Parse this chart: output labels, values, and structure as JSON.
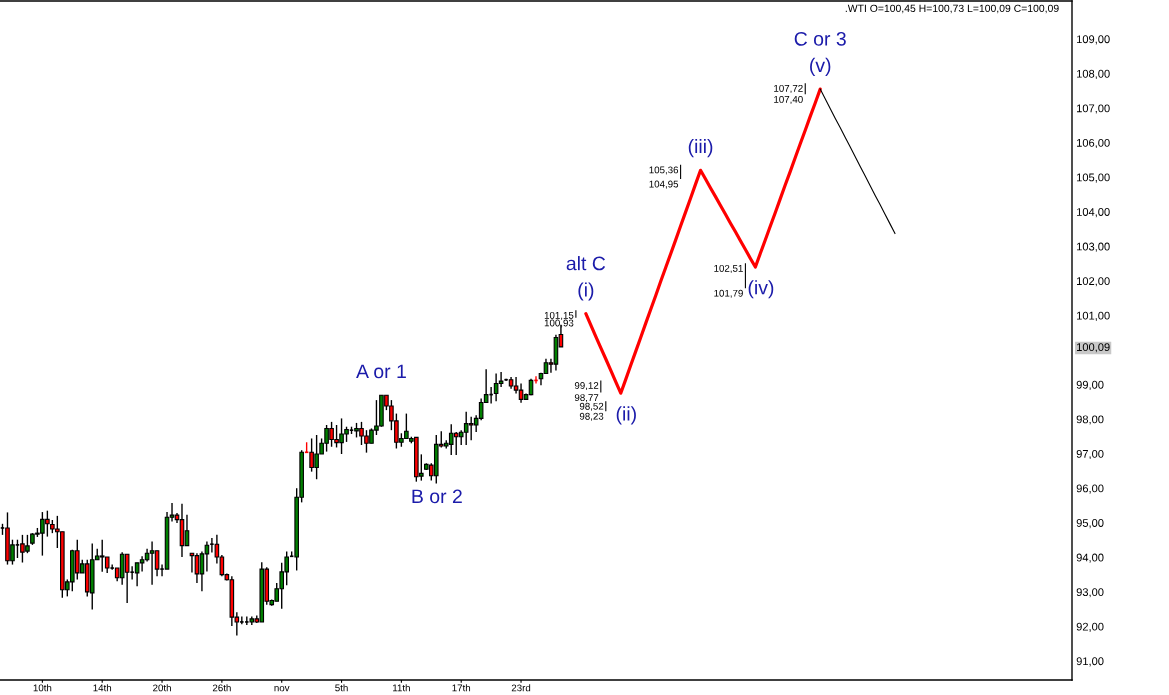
{
  "chart_data": {
    "type": "candlestick",
    "title": ".WTI O=100,45 H=100,73 L=100,09 C=100,09",
    "categories": [
      null,
      null,
      null,
      null,
      null,
      null,
      null,
      null,
      "10th",
      null,
      null,
      null,
      null,
      null,
      null,
      null,
      null,
      null,
      null,
      null,
      "14th",
      null,
      null,
      null,
      null,
      null,
      null,
      null,
      null,
      null,
      null,
      null,
      "20th",
      null,
      null,
      null,
      null,
      null,
      null,
      null,
      null,
      null,
      null,
      null,
      "26th",
      null,
      null,
      null,
      null,
      null,
      null,
      null,
      null,
      null,
      null,
      null,
      "nov",
      null,
      null,
      null,
      null,
      null,
      null,
      null,
      null,
      null,
      null,
      null,
      "5th",
      null,
      null,
      null,
      null,
      null,
      null,
      null,
      null,
      null,
      null,
      null,
      "11th",
      null,
      null,
      null,
      null,
      null,
      null,
      null,
      null,
      null,
      null,
      null,
      "17th",
      null,
      null,
      null,
      null,
      null,
      null,
      null,
      null,
      null,
      null,
      null,
      "23rd",
      null,
      null,
      null,
      null,
      null,
      null,
      null,
      null,
      null,
      null,
      null,
      null,
      null,
      null,
      null,
      null,
      null,
      null,
      null,
      null,
      null,
      null,
      null,
      null,
      null,
      null,
      null,
      null,
      null,
      null,
      null,
      null,
      null,
      null,
      null,
      null,
      null,
      null,
      null,
      null,
      null,
      null,
      null,
      null,
      null,
      null,
      null,
      null,
      null,
      null,
      null,
      null,
      null,
      null,
      null,
      null,
      null,
      null,
      null,
      null,
      null,
      null,
      null,
      null,
      null,
      null,
      null,
      null,
      null,
      null,
      null,
      null,
      null,
      null,
      null,
      null,
      null,
      null,
      null,
      null,
      null,
      null,
      null,
      null,
      null,
      null,
      null,
      null,
      null,
      null,
      null,
      null,
      null,
      null,
      null,
      null,
      null,
      null,
      null,
      null,
      null,
      null,
      null,
      null,
      null,
      null,
      null,
      null,
      null,
      null
    ],
    "ohlc": [
      [
        94.85,
        94.97,
        94.65,
        94.85
      ],
      [
        94.85,
        95.3,
        93.79,
        93.9
      ],
      [
        93.9,
        94.51,
        93.79,
        94.36
      ],
      [
        94.36,
        94.51,
        93.98,
        94.36
      ],
      [
        94.39,
        94.65,
        93.85,
        94.15
      ],
      [
        94.18,
        94.65,
        94.12,
        94.33
      ],
      [
        94.41,
        94.7,
        94.36,
        94.67
      ],
      [
        94.67,
        94.85,
        94.59,
        94.7
      ],
      [
        94.7,
        95.31,
        94.05,
        95.1
      ],
      [
        95.1,
        95.35,
        94.6,
        94.97
      ],
      [
        94.95,
        95.08,
        94.7,
        94.82
      ],
      [
        94.82,
        95.2,
        94.27,
        94.74
      ],
      [
        94.74,
        94.74,
        92.83,
        93.06
      ],
      [
        93.06,
        93.36,
        92.87,
        93.29
      ],
      [
        93.29,
        94.22,
        93.02,
        94.19
      ],
      [
        94.19,
        94.51,
        93.36,
        93.55
      ],
      [
        93.55,
        93.93,
        93.55,
        93.81
      ],
      [
        93.81,
        93.93,
        92.87,
        93.0
      ],
      [
        92.97,
        94.4,
        92.49,
        93.93
      ],
      [
        93.93,
        94.25,
        93.93,
        94.04
      ],
      [
        94.01,
        94.51,
        93.58,
        94.04
      ],
      [
        94.01,
        94.01,
        93.55,
        93.69
      ],
      [
        93.69,
        93.79,
        93.64,
        93.69
      ],
      [
        93.69,
        93.69,
        93.31,
        93.41
      ],
      [
        93.41,
        94.15,
        93.21,
        94.09
      ],
      [
        94.09,
        94.09,
        92.68,
        93.57
      ],
      [
        93.57,
        93.74,
        93.36,
        93.57
      ],
      [
        93.55,
        93.84,
        93.16,
        93.84
      ],
      [
        93.84,
        94.03,
        93.59,
        93.93
      ],
      [
        93.93,
        94.25,
        93.88,
        94.12
      ],
      [
        94.12,
        94.46,
        93.21,
        94.19
      ],
      [
        94.19,
        94.19,
        93.45,
        93.66
      ],
      [
        93.66,
        93.79,
        93.45,
        93.66
      ],
      [
        93.66,
        95.31,
        93.66,
        95.16
      ],
      [
        95.16,
        95.57,
        95.04,
        95.22
      ],
      [
        95.22,
        95.28,
        94.99,
        95.09
      ],
      [
        95.09,
        95.55,
        94.01,
        94.34
      ],
      [
        94.34,
        95.23,
        94.34,
        94.77
      ],
      [
        94.12,
        94.12,
        93.56,
        94.05
      ],
      [
        94.05,
        94.12,
        93.26,
        93.52
      ],
      [
        93.52,
        94.17,
        93.02,
        94.1
      ],
      [
        94.1,
        94.46,
        93.59,
        94.35
      ],
      [
        94.38,
        94.56,
        94.14,
        94.38
      ],
      [
        94.38,
        94.65,
        93.82,
        94.01
      ],
      [
        94.01,
        94.07,
        93.45,
        93.5
      ],
      [
        93.5,
        93.53,
        93.33,
        93.35
      ],
      [
        93.35,
        93.45,
        92.01,
        92.27
      ],
      [
        92.27,
        92.41,
        91.74,
        92.13
      ],
      [
        92.13,
        92.29,
        92.06,
        92.13
      ],
      [
        92.13,
        92.29,
        92.04,
        92.13
      ],
      [
        92.13,
        92.29,
        92.04,
        92.22
      ],
      [
        92.22,
        92.32,
        92.1,
        92.13
      ],
      [
        92.13,
        93.86,
        92.13,
        93.66
      ],
      [
        93.66,
        93.71,
        92.63,
        92.73
      ],
      [
        92.63,
        92.78,
        92.6,
        92.75
      ],
      [
        92.73,
        93.26,
        92.73,
        93.09
      ],
      [
        93.09,
        93.84,
        92.51,
        93.58
      ],
      [
        93.58,
        94.17,
        93.19,
        94.01
      ],
      [
        94.03,
        94.17,
        94.01,
        94.03
      ],
      [
        94.01,
        96.0,
        93.62,
        95.74
      ],
      [
        95.74,
        97.1,
        95.59,
        97.04
      ],
      [
        97.04,
        97.33,
        97.04,
        97.04
      ],
      [
        97.04,
        97.44,
        96.48,
        96.6
      ],
      [
        96.6,
        97.54,
        96.26,
        96.99
      ],
      [
        96.99,
        97.44,
        96.99,
        97.3
      ],
      [
        97.3,
        97.83,
        97.06,
        97.73
      ],
      [
        97.73,
        97.92,
        97.2,
        97.41
      ],
      [
        97.41,
        97.83,
        97.18,
        97.32
      ],
      [
        97.32,
        98.02,
        96.99,
        97.57
      ],
      [
        97.57,
        97.78,
        97.34,
        97.7
      ],
      [
        97.68,
        97.78,
        97.57,
        97.68
      ],
      [
        97.66,
        97.89,
        97.47,
        97.73
      ],
      [
        97.73,
        97.92,
        97.25,
        97.51
      ],
      [
        97.51,
        97.68,
        97.03,
        97.3
      ],
      [
        97.3,
        97.73,
        97.3,
        97.68
      ],
      [
        97.68,
        98.55,
        97.54,
        97.8
      ],
      [
        97.8,
        98.69,
        97.78,
        98.69
      ],
      [
        98.69,
        98.69,
        98.26,
        98.38
      ],
      [
        98.38,
        98.55,
        97.68,
        97.95
      ],
      [
        97.95,
        98.16,
        97.15,
        97.33
      ],
      [
        97.33,
        97.59,
        97.2,
        97.44
      ],
      [
        97.44,
        98.16,
        97.44,
        97.65
      ],
      [
        97.36,
        97.49,
        97.3,
        97.44
      ],
      [
        97.47,
        97.47,
        96.19,
        96.33
      ],
      [
        96.35,
        96.98,
        96.22,
        96.43
      ],
      [
        96.55,
        96.72,
        96.53,
        96.69
      ],
      [
        96.67,
        96.72,
        96.22,
        96.36
      ],
      [
        96.36,
        97.54,
        96.14,
        97.27
      ],
      [
        97.27,
        97.65,
        97.18,
        97.22
      ],
      [
        97.22,
        97.39,
        97.15,
        97.3
      ],
      [
        97.27,
        97.85,
        96.96,
        97.59
      ],
      [
        97.59,
        97.63,
        96.96,
        97.49
      ],
      [
        97.49,
        97.68,
        97.25,
        97.62
      ],
      [
        97.62,
        98.21,
        97.25,
        97.87
      ],
      [
        97.87,
        98.07,
        97.39,
        97.83
      ],
      [
        97.83,
        98.11,
        97.63,
        98.02
      ],
      [
        98.02,
        98.6,
        97.97,
        98.48
      ],
      [
        98.48,
        99.44,
        98.48,
        98.71
      ],
      [
        98.71,
        98.93,
        98.45,
        98.71
      ],
      [
        98.74,
        99.32,
        98.52,
        99.03
      ],
      [
        99.03,
        99.36,
        98.93,
        99.1
      ],
      [
        99.14,
        99.17,
        99.1,
        99.14
      ],
      [
        99.14,
        99.22,
        98.88,
        98.96
      ],
      [
        98.96,
        99.22,
        98.74,
        98.84
      ],
      [
        98.84,
        99.03,
        98.47,
        98.57
      ],
      [
        98.57,
        98.74,
        98.57,
        98.71
      ],
      [
        98.71,
        99.17,
        98.69,
        99.12
      ],
      [
        99.12,
        99.24,
        99.03,
        99.12
      ],
      [
        99.17,
        99.34,
        98.98,
        99.32
      ],
      [
        99.32,
        99.75,
        99.32,
        99.63
      ],
      [
        99.63,
        99.75,
        99.34,
        99.59
      ],
      [
        99.59,
        100.44,
        99.41,
        100.36
      ],
      [
        100.45,
        100.73,
        100.09,
        100.09
      ],
      null,
      null,
      null,
      null,
      null,
      null,
      null,
      null,
      null,
      null,
      null,
      null,
      null,
      null,
      null,
      null,
      null,
      null,
      null,
      null,
      null,
      null,
      null,
      null,
      null,
      null,
      null,
      null,
      null,
      null,
      null,
      null,
      null,
      null,
      null,
      null,
      null,
      null,
      null,
      null,
      null,
      null,
      null,
      null,
      null,
      null,
      null,
      null,
      null,
      null,
      null,
      null,
      null,
      null,
      null,
      null,
      null,
      null,
      null,
      null,
      null,
      null,
      null,
      null,
      null,
      null,
      null,
      null,
      null,
      null,
      null,
      null,
      null,
      null,
      null,
      null,
      null,
      null,
      null,
      null,
      null,
      null,
      null,
      null,
      null,
      null,
      null,
      null,
      null,
      null,
      null,
      null,
      null,
      null,
      null,
      null,
      null,
      null,
      null,
      null,
      null,
      null
    ],
    "colors": [
      "#000000",
      "#ff0000",
      "#008000",
      "#000000",
      "#ff0000",
      "#008000",
      "#008000",
      "#008000",
      "#008000",
      "#ff0000",
      "#ff0000",
      "#ff0000",
      "#ff0000",
      "#008000",
      "#008000",
      "#ff0000",
      "#008000",
      "#ff0000",
      "#008000",
      "#008000",
      "#008000",
      "#ff0000",
      "#000000",
      "#ff0000",
      "#008000",
      "#ff0000",
      "#000000",
      "#008000",
      "#008000",
      "#008000",
      "#008000",
      "#ff0000",
      "#000000",
      "#008000",
      "#008000",
      "#ff0000",
      "#ff0000",
      "#008000",
      "#ff0000",
      "#ff0000",
      "#008000",
      "#008000",
      "#000000",
      "#ff0000",
      "#ff0000",
      "#ff0000",
      "#ff0000",
      "#ff0000",
      "#000000",
      "#000000",
      "#008000",
      "#ff0000",
      "#008000",
      "#ff0000",
      "#008000",
      "#008000",
      "#008000",
      "#008000",
      "#000000",
      "#008000",
      "#008000",
      "#ff0000",
      "#ff0000",
      "#008000",
      "#008000",
      "#008000",
      "#ff0000",
      "#ff0000",
      "#008000",
      "#008000",
      "#000000",
      "#008000",
      "#ff0000",
      "#ff0000",
      "#008000",
      "#008000",
      "#008000",
      "#ff0000",
      "#ff0000",
      "#ff0000",
      "#008000",
      "#008000",
      "#008000",
      "#ff0000",
      "#008000",
      "#008000",
      "#ff0000",
      "#008000",
      "#ff0000",
      "#008000",
      "#008000",
      "#ff0000",
      "#008000",
      "#008000",
      "#ff0000",
      "#008000",
      "#008000",
      "#008000",
      "#000000",
      "#008000",
      "#008000",
      "#000000",
      "#ff0000",
      "#ff0000",
      "#ff0000",
      "#008000",
      "#008000",
      "#ff0000",
      "#008000",
      "#008000",
      "#ff0000",
      "#008000",
      "#ff0000",
      null,
      null,
      null,
      null,
      null,
      null,
      null,
      null,
      null,
      null,
      null,
      null,
      null,
      null,
      null,
      null,
      null,
      null,
      null,
      null,
      null,
      null,
      null,
      null,
      null,
      null,
      null,
      null,
      null,
      null,
      null,
      null,
      null,
      null,
      null,
      null,
      null,
      null,
      null,
      null,
      null,
      null,
      null,
      null,
      null,
      null,
      null,
      null,
      null,
      null,
      null,
      null,
      null,
      null,
      null,
      null,
      null,
      null,
      null,
      null,
      null,
      null,
      null,
      null,
      null,
      null,
      null,
      null,
      null,
      null,
      null,
      null,
      null,
      null,
      null,
      null,
      null,
      null,
      null,
      null,
      null,
      null,
      null,
      null,
      null,
      null,
      null,
      null,
      null,
      null,
      null,
      null,
      null,
      null,
      null,
      null,
      null,
      null,
      null,
      null,
      null,
      null
    ],
    "series": [
      {
        "type": "line",
        "color": "#ff0000",
        "values": [
          null,
          null,
          null,
          null,
          null,
          null,
          null,
          null,
          null,
          null,
          null,
          null,
          null,
          null,
          null,
          null,
          null,
          null,
          null,
          null,
          null,
          null,
          null,
          null,
          null,
          null,
          null,
          null,
          null,
          null,
          null,
          null,
          null,
          null,
          null,
          null,
          null,
          null,
          null,
          null,
          null,
          null,
          null,
          null,
          null,
          null,
          null,
          null,
          null,
          null,
          null,
          null,
          null,
          null,
          null,
          null,
          null,
          null,
          null,
          null,
          null,
          null,
          null,
          null,
          null,
          null,
          null,
          null,
          null,
          null,
          null,
          null,
          null,
          null,
          null,
          null,
          null,
          null,
          null,
          null,
          null,
          null,
          null,
          null,
          null,
          null,
          null,
          null,
          null,
          null,
          null,
          null,
          null,
          null,
          null,
          null,
          null,
          null,
          null,
          null,
          null,
          null,
          null,
          null,
          null,
          null,
          null,
          null,
          null,
          null,
          null,
          null,
          null,
          null,
          null,
          null,
          null,
          101.05,
          100.72,
          100.39,
          100.06,
          99.74,
          99.41,
          99.08,
          98.75,
          99.15,
          99.56,
          99.96,
          100.36,
          100.77,
          101.17,
          101.57,
          101.98,
          102.38,
          102.78,
          103.18,
          103.59,
          103.99,
          104.39,
          104.8,
          105.2,
          104.95,
          104.69,
          104.44,
          104.18,
          103.93,
          103.67,
          103.42,
          103.16,
          102.91,
          102.65,
          102.4,
          102.8,
          103.19,
          103.59,
          103.98,
          104.38,
          104.78,
          105.17,
          105.57,
          105.97,
          106.36,
          106.76,
          107.15,
          107.55,
          null,
          null,
          null,
          null,
          null,
          null,
          null,
          null,
          null,
          null,
          null,
          null,
          null,
          null,
          null,
          null,
          null,
          null,
          null,
          null,
          null,
          null,
          null,
          null,
          null,
          null,
          null,
          null,
          null,
          null,
          null,
          null,
          null,
          null,
          null,
          null,
          null,
          null,
          null,
          null,
          null,
          null,
          null,
          null,
          null,
          null,
          null,
          null,
          null,
          null
        ]
      },
      {
        "type": "line",
        "color": "#000000",
        "values": [
          null,
          null,
          null,
          null,
          null,
          null,
          null,
          null,
          null,
          null,
          null,
          null,
          null,
          null,
          null,
          null,
          null,
          null,
          null,
          null,
          null,
          null,
          null,
          null,
          null,
          null,
          null,
          null,
          null,
          null,
          null,
          null,
          null,
          null,
          null,
          null,
          null,
          null,
          null,
          null,
          null,
          null,
          null,
          null,
          null,
          null,
          null,
          null,
          null,
          null,
          null,
          null,
          null,
          null,
          null,
          null,
          null,
          null,
          null,
          null,
          null,
          null,
          null,
          null,
          null,
          null,
          null,
          null,
          null,
          null,
          null,
          null,
          null,
          null,
          null,
          null,
          null,
          null,
          null,
          null,
          null,
          null,
          null,
          null,
          null,
          null,
          null,
          null,
          null,
          null,
          null,
          null,
          null,
          null,
          null,
          null,
          null,
          null,
          null,
          null,
          null,
          null,
          null,
          null,
          null,
          null,
          null,
          null,
          null,
          null,
          null,
          null,
          null,
          null,
          null,
          null,
          null,
          null,
          null,
          null,
          null,
          null,
          null,
          null,
          null,
          null,
          null,
          null,
          null,
          null,
          null,
          null,
          null,
          null,
          null,
          null,
          null,
          null,
          null,
          null,
          null,
          null,
          null,
          null,
          null,
          null,
          null,
          null,
          null,
          null,
          null,
          null,
          null,
          null,
          null,
          null,
          null,
          null,
          null,
          null,
          null,
          null,
          null,
          null,
          107.55,
          107.27,
          106.99,
          106.71,
          106.44,
          106.16,
          105.88,
          105.6,
          105.32,
          105.04,
          104.76,
          104.48,
          104.21,
          103.93,
          103.65,
          103.37,
          null,
          null,
          null,
          null,
          null,
          null,
          null,
          null,
          null,
          null,
          null,
          null,
          null,
          null,
          null,
          null,
          null,
          null,
          null,
          null,
          null,
          null,
          null,
          null,
          null,
          null,
          null,
          null,
          null,
          null,
          null,
          null,
          null,
          null,
          null
        ]
      },
      {
        "type": "bar",
        "color": "#000000",
        "base": [
          null,
          null,
          null,
          null,
          null,
          null,
          null,
          null,
          null,
          null,
          null,
          null,
          null,
          null,
          null,
          null,
          null,
          null,
          null,
          null,
          null,
          null,
          null,
          null,
          null,
          null,
          null,
          null,
          null,
          null,
          null,
          null,
          null,
          null,
          null,
          null,
          null,
          null,
          null,
          null,
          null,
          null,
          null,
          null,
          null,
          null,
          null,
          null,
          null,
          null,
          null,
          null,
          null,
          null,
          null,
          null,
          null,
          null,
          null,
          null,
          null,
          null,
          null,
          null,
          null,
          null,
          null,
          null,
          null,
          null,
          null,
          null,
          null,
          null,
          null,
          null,
          null,
          null,
          null,
          null,
          null,
          null,
          null,
          null,
          null,
          null,
          null,
          null,
          null,
          null,
          null,
          null,
          null,
          null,
          null,
          null,
          null,
          null,
          null,
          null,
          null,
          null,
          null,
          null,
          null,
          null,
          null,
          null,
          null,
          null,
          null,
          null,
          null,
          null,
          null,
          100.93,
          null,
          null,
          null,
          null,
          98.77,
          98.23,
          null,
          null,
          null,
          null,
          null,
          null,
          null,
          null,
          null,
          null,
          null,
          null,
          null,
          null,
          104.95,
          null,
          null,
          null,
          null,
          null,
          null,
          null,
          null,
          null,
          null,
          null,
          null,
          101.79,
          null,
          null,
          null,
          null,
          null,
          null,
          null,
          null,
          null,
          null,
          null,
          107.4,
          null,
          null,
          null,
          null,
          null,
          null,
          null,
          null,
          null,
          null,
          null,
          null,
          null,
          null,
          null,
          null,
          null,
          null,
          null,
          null,
          null,
          null,
          null,
          null,
          null,
          null,
          null,
          null,
          null,
          null,
          null,
          null,
          null,
          null,
          null,
          null,
          null,
          null,
          null,
          null,
          null,
          null,
          null,
          null,
          null,
          null,
          null,
          null,
          null,
          null,
          null,
          null,
          null
        ],
        "values": [
          null,
          null,
          null,
          null,
          null,
          null,
          null,
          null,
          null,
          null,
          null,
          null,
          null,
          null,
          null,
          null,
          null,
          null,
          null,
          null,
          null,
          null,
          null,
          null,
          null,
          null,
          null,
          null,
          null,
          null,
          null,
          null,
          null,
          null,
          null,
          null,
          null,
          null,
          null,
          null,
          null,
          null,
          null,
          null,
          null,
          null,
          null,
          null,
          null,
          null,
          null,
          null,
          null,
          null,
          null,
          null,
          null,
          null,
          null,
          null,
          null,
          null,
          null,
          null,
          null,
          null,
          null,
          null,
          null,
          null,
          null,
          null,
          null,
          null,
          null,
          null,
          null,
          null,
          null,
          null,
          null,
          null,
          null,
          null,
          null,
          null,
          null,
          null,
          null,
          null,
          null,
          null,
          null,
          null,
          null,
          null,
          null,
          null,
          null,
          null,
          null,
          null,
          null,
          null,
          null,
          null,
          null,
          null,
          null,
          null,
          null,
          null,
          null,
          null,
          null,
          0.22,
          null,
          null,
          null,
          null,
          0.35,
          0.29,
          null,
          null,
          null,
          null,
          null,
          null,
          null,
          null,
          null,
          null,
          null,
          null,
          null,
          null,
          0.41,
          null,
          null,
          null,
          null,
          null,
          null,
          null,
          null,
          null,
          null,
          null,
          null,
          0.72,
          null,
          null,
          null,
          null,
          null,
          null,
          null,
          null,
          null,
          null,
          null,
          0.32,
          null,
          null,
          null,
          null,
          null,
          null,
          null,
          null,
          null,
          null,
          null,
          null,
          null,
          null,
          null,
          null,
          null,
          null,
          null,
          null,
          null,
          null,
          null,
          null,
          null,
          null,
          null,
          null,
          null,
          null,
          null,
          null,
          null,
          null,
          null,
          null,
          null,
          null,
          null,
          null,
          null,
          null,
          null,
          null,
          null,
          null,
          null,
          null,
          null,
          null,
          null,
          null,
          null
        ]
      }
    ],
    "ylim": [
      90.45,
      110.1
    ],
    "yticks": [
      {
        "value": 91,
        "label": "91,00"
      },
      {
        "value": 92,
        "label": "92,00"
      },
      {
        "value": 93,
        "label": "93,00"
      },
      {
        "value": 94,
        "label": "94,00"
      },
      {
        "value": 95,
        "label": "95,00"
      },
      {
        "value": 96,
        "label": "96,00"
      },
      {
        "value": 97,
        "label": "97,00"
      },
      {
        "value": 98,
        "label": "98,00"
      },
      {
        "value": 99,
        "label": "99,00"
      },
      {
        "value": 100.09,
        "label": "100,09"
      },
      {
        "value": 101,
        "label": "101,00"
      },
      {
        "value": 102,
        "label": "102,00"
      },
      {
        "value": 103,
        "label": "103,00"
      },
      {
        "value": 104,
        "label": "104,00"
      },
      {
        "value": 105,
        "label": "105,00"
      },
      {
        "value": 106,
        "label": "106,00"
      },
      {
        "value": 107,
        "label": "107,00"
      },
      {
        "value": 108,
        "label": "108,00"
      },
      {
        "value": 109,
        "label": "109,00"
      }
    ],
    "annotations": [
      {
        "text": "A or 1",
        "y": 98.69
      },
      {
        "text": "B or 2",
        "y": 96.36
      },
      {
        "text": "(i)",
        "y": 101.05
      },
      {
        "text": "alt C",
        "y": 101.05
      },
      {
        "text": "(ii)",
        "y": 98.75
      },
      {
        "text": "(iii)",
        "y": 105.2
      },
      {
        "text": "(iv)",
        "y": 102.4
      },
      {
        "text": "(v)",
        "y": 107.55
      },
      {
        "text": "C or 3",
        "y": 107.55
      },
      "101,15",
      "100,93",
      "99,12",
      "98,77",
      "98,52",
      "98,23",
      "105,36",
      "104,95",
      "102,51",
      "101,79",
      "107,72",
      "107,40"
    ]
  }
}
